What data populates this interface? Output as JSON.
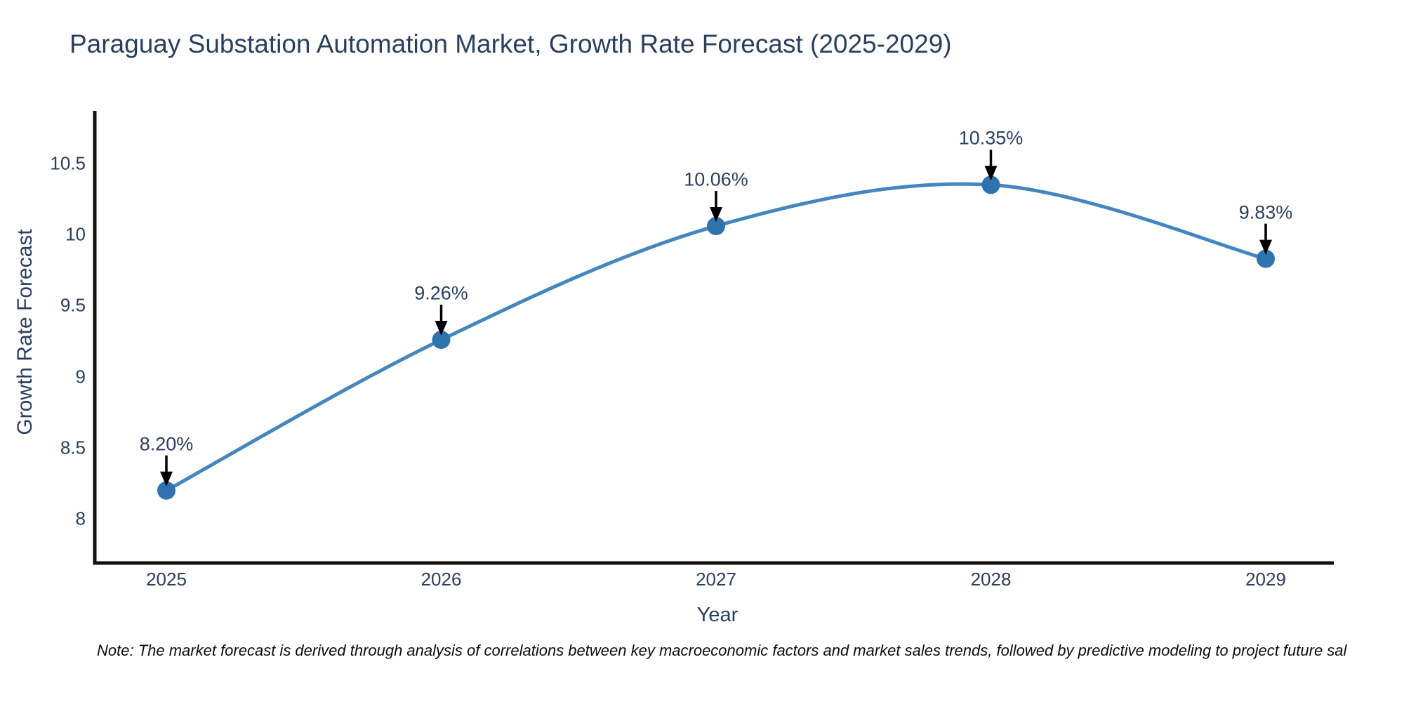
{
  "chart_data": {
    "type": "line",
    "title": "Paraguay Substation Automation Market, Growth Rate Forecast (2025-2029)",
    "x": [
      2025,
      2026,
      2027,
      2028,
      2029
    ],
    "x_labels": [
      "2025",
      "2026",
      "2027",
      "2028",
      "2029"
    ],
    "series": [
      {
        "name": "Growth Rate Forecast",
        "values": [
          8.2,
          9.26,
          10.06,
          10.35,
          9.83
        ],
        "point_labels": [
          "8.20%",
          "9.26%",
          "10.06%",
          "10.35%",
          "9.83%"
        ]
      }
    ],
    "xlabel": "Year",
    "ylabel": "Growth Rate Forecast",
    "ytick_labels": [
      "8",
      "8.5",
      "9",
      "9.5",
      "10",
      "10.5"
    ],
    "yticks": [
      8,
      8.5,
      9,
      9.5,
      10,
      10.5
    ],
    "ylim": [
      7.69,
      10.87
    ],
    "grid": false,
    "legend_position": "none",
    "line_shape": "spline",
    "annotations_have_arrows": true,
    "colors": {
      "line": "#4486bd",
      "marker": "#2e73ad",
      "axis": "#121212",
      "text": "#2a3f5f",
      "arrow": "#000000",
      "background": "#ffffff"
    }
  },
  "note": {
    "text": "Note: The market forecast is derived through analysis of correlations between key macroeconomic factors and market sales trends, followed by predictive modeling to project future sal"
  }
}
